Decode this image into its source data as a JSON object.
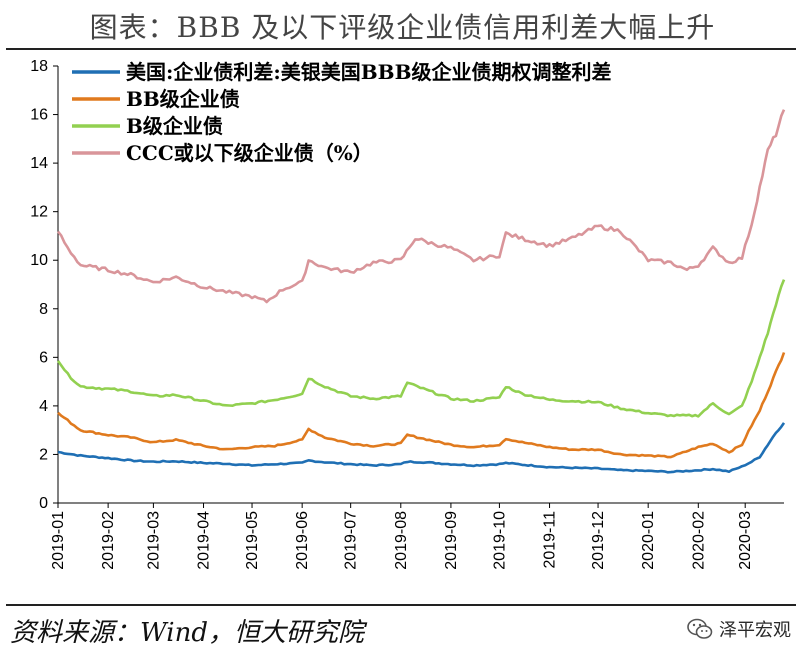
{
  "header": {
    "title": "图表：BBB 及以下评级企业债信用利差大幅上升"
  },
  "footer": {
    "source": "资料来源：Wind，恒大研究院",
    "watermark": "泽平宏观"
  },
  "chart_data": {
    "type": "line",
    "title": "",
    "xlabel": "",
    "ylabel": "",
    "ylim": [
      0,
      18
    ],
    "yticks": [
      0,
      2,
      4,
      6,
      8,
      10,
      12,
      14,
      16,
      18
    ],
    "xlim": [
      "2019-01",
      "2020-03-25"
    ],
    "xticks": [
      "2019-01",
      "2019-02",
      "2019-03",
      "2019-04",
      "2019-05",
      "2019-06",
      "2019-07",
      "2019-08",
      "2019-09",
      "2019-10",
      "2019-11",
      "2019-12",
      "2020-01",
      "2020-02",
      "2020-03"
    ],
    "grid": false,
    "legend_position": "top-left",
    "series": [
      {
        "name": "美国:企业债利差:美银美国BBB级企业债期权调整利差",
        "color": "#1f6fb4",
        "points": [
          [
            "2019-01-01",
            2.1
          ],
          [
            "2019-01-15",
            1.95
          ],
          [
            "2019-02-01",
            1.85
          ],
          [
            "2019-02-15",
            1.75
          ],
          [
            "2019-03-01",
            1.7
          ],
          [
            "2019-03-15",
            1.72
          ],
          [
            "2019-04-01",
            1.65
          ],
          [
            "2019-04-15",
            1.62
          ],
          [
            "2019-05-01",
            1.55
          ],
          [
            "2019-05-15",
            1.6
          ],
          [
            "2019-06-01",
            1.65
          ],
          [
            "2019-06-05",
            1.75
          ],
          [
            "2019-06-15",
            1.68
          ],
          [
            "2019-07-01",
            1.6
          ],
          [
            "2019-07-15",
            1.55
          ],
          [
            "2019-08-01",
            1.6
          ],
          [
            "2019-08-05",
            1.7
          ],
          [
            "2019-08-15",
            1.68
          ],
          [
            "2019-09-01",
            1.6
          ],
          [
            "2019-09-15",
            1.55
          ],
          [
            "2019-10-01",
            1.6
          ],
          [
            "2019-10-05",
            1.65
          ],
          [
            "2019-10-15",
            1.58
          ],
          [
            "2019-11-01",
            1.48
          ],
          [
            "2019-11-15",
            1.45
          ],
          [
            "2019-12-01",
            1.42
          ],
          [
            "2019-12-15",
            1.35
          ],
          [
            "2020-01-01",
            1.32
          ],
          [
            "2020-01-15",
            1.28
          ],
          [
            "2020-02-01",
            1.35
          ],
          [
            "2020-02-10",
            1.4
          ],
          [
            "2020-02-20",
            1.3
          ],
          [
            "2020-02-28",
            1.5
          ],
          [
            "2020-03-05",
            1.7
          ],
          [
            "2020-03-10",
            1.9
          ],
          [
            "2020-03-15",
            2.4
          ],
          [
            "2020-03-20",
            2.9
          ],
          [
            "2020-03-25",
            3.3
          ]
        ]
      },
      {
        "name": "BB级企业债",
        "color": "#e07a1e",
        "points": [
          [
            "2019-01-01",
            3.7
          ],
          [
            "2019-01-07",
            3.4
          ],
          [
            "2019-01-15",
            3.0
          ],
          [
            "2019-02-01",
            2.8
          ],
          [
            "2019-02-15",
            2.7
          ],
          [
            "2019-03-01",
            2.5
          ],
          [
            "2019-03-15",
            2.6
          ],
          [
            "2019-04-01",
            2.35
          ],
          [
            "2019-04-15",
            2.2
          ],
          [
            "2019-05-01",
            2.3
          ],
          [
            "2019-05-15",
            2.35
          ],
          [
            "2019-06-01",
            2.6
          ],
          [
            "2019-06-05",
            3.05
          ],
          [
            "2019-06-15",
            2.7
          ],
          [
            "2019-07-01",
            2.45
          ],
          [
            "2019-07-15",
            2.35
          ],
          [
            "2019-08-01",
            2.45
          ],
          [
            "2019-08-05",
            2.8
          ],
          [
            "2019-08-15",
            2.65
          ],
          [
            "2019-09-01",
            2.4
          ],
          [
            "2019-09-15",
            2.3
          ],
          [
            "2019-10-01",
            2.4
          ],
          [
            "2019-10-05",
            2.65
          ],
          [
            "2019-10-15",
            2.5
          ],
          [
            "2019-11-01",
            2.3
          ],
          [
            "2019-11-15",
            2.2
          ],
          [
            "2019-12-01",
            2.2
          ],
          [
            "2019-12-15",
            2.0
          ],
          [
            "2020-01-01",
            1.95
          ],
          [
            "2020-01-15",
            1.9
          ],
          [
            "2020-02-01",
            2.3
          ],
          [
            "2020-02-10",
            2.45
          ],
          [
            "2020-02-20",
            2.1
          ],
          [
            "2020-02-28",
            2.4
          ],
          [
            "2020-03-05",
            3.2
          ],
          [
            "2020-03-10",
            3.8
          ],
          [
            "2020-03-15",
            4.6
          ],
          [
            "2020-03-20",
            5.4
          ],
          [
            "2020-03-25",
            6.2
          ]
        ]
      },
      {
        "name": "B级企业债",
        "color": "#92d050",
        "points": [
          [
            "2019-01-01",
            5.9
          ],
          [
            "2019-01-07",
            5.3
          ],
          [
            "2019-01-15",
            4.8
          ],
          [
            "2019-02-01",
            4.7
          ],
          [
            "2019-02-15",
            4.6
          ],
          [
            "2019-03-01",
            4.4
          ],
          [
            "2019-03-15",
            4.45
          ],
          [
            "2019-04-01",
            4.2
          ],
          [
            "2019-04-15",
            4.0
          ],
          [
            "2019-05-01",
            4.1
          ],
          [
            "2019-05-15",
            4.25
          ],
          [
            "2019-06-01",
            4.5
          ],
          [
            "2019-06-05",
            5.15
          ],
          [
            "2019-06-15",
            4.8
          ],
          [
            "2019-07-01",
            4.4
          ],
          [
            "2019-07-15",
            4.3
          ],
          [
            "2019-08-01",
            4.4
          ],
          [
            "2019-08-05",
            4.95
          ],
          [
            "2019-08-15",
            4.7
          ],
          [
            "2019-09-01",
            4.3
          ],
          [
            "2019-09-15",
            4.2
          ],
          [
            "2019-10-01",
            4.35
          ],
          [
            "2019-10-05",
            4.8
          ],
          [
            "2019-10-15",
            4.5
          ],
          [
            "2019-11-01",
            4.25
          ],
          [
            "2019-11-15",
            4.2
          ],
          [
            "2019-12-01",
            4.15
          ],
          [
            "2019-12-15",
            3.9
          ],
          [
            "2020-01-01",
            3.7
          ],
          [
            "2020-01-15",
            3.6
          ],
          [
            "2020-02-01",
            3.6
          ],
          [
            "2020-02-10",
            4.1
          ],
          [
            "2020-02-20",
            3.65
          ],
          [
            "2020-02-28",
            4.0
          ],
          [
            "2020-03-05",
            5.0
          ],
          [
            "2020-03-10",
            6.0
          ],
          [
            "2020-03-15",
            7.0
          ],
          [
            "2020-03-20",
            8.2
          ],
          [
            "2020-03-25",
            9.2
          ]
        ]
      },
      {
        "name": "CCC或以下级企业债（%）",
        "color": "#d9959a",
        "points": [
          [
            "2019-01-01",
            11.2
          ],
          [
            "2019-01-07",
            10.5
          ],
          [
            "2019-01-15",
            9.8
          ],
          [
            "2019-02-01",
            9.6
          ],
          [
            "2019-02-15",
            9.4
          ],
          [
            "2019-03-01",
            9.1
          ],
          [
            "2019-03-15",
            9.3
          ],
          [
            "2019-04-01",
            8.9
          ],
          [
            "2019-04-15",
            8.7
          ],
          [
            "2019-05-01",
            8.5
          ],
          [
            "2019-05-10",
            8.3
          ],
          [
            "2019-05-20",
            8.8
          ],
          [
            "2019-06-01",
            9.1
          ],
          [
            "2019-06-05",
            10.0
          ],
          [
            "2019-06-15",
            9.7
          ],
          [
            "2019-07-01",
            9.5
          ],
          [
            "2019-07-15",
            9.9
          ],
          [
            "2019-08-01",
            10.0
          ],
          [
            "2019-08-10",
            10.9
          ],
          [
            "2019-08-20",
            10.7
          ],
          [
            "2019-09-01",
            10.5
          ],
          [
            "2019-09-15",
            10.0
          ],
          [
            "2019-10-01",
            10.2
          ],
          [
            "2019-10-05",
            11.1
          ],
          [
            "2019-10-15",
            10.9
          ],
          [
            "2019-11-01",
            10.6
          ],
          [
            "2019-11-15",
            10.9
          ],
          [
            "2019-12-01",
            11.4
          ],
          [
            "2019-12-15",
            11.2
          ],
          [
            "2020-01-01",
            10.0
          ],
          [
            "2020-01-15",
            9.9
          ],
          [
            "2020-01-25",
            9.6
          ],
          [
            "2020-02-01",
            9.8
          ],
          [
            "2020-02-10",
            10.5
          ],
          [
            "2020-02-20",
            9.9
          ],
          [
            "2020-02-28",
            10.1
          ],
          [
            "2020-03-05",
            11.5
          ],
          [
            "2020-03-10",
            13.0
          ],
          [
            "2020-03-15",
            14.5
          ],
          [
            "2020-03-20",
            15.2
          ],
          [
            "2020-03-25",
            16.2
          ]
        ]
      }
    ]
  }
}
